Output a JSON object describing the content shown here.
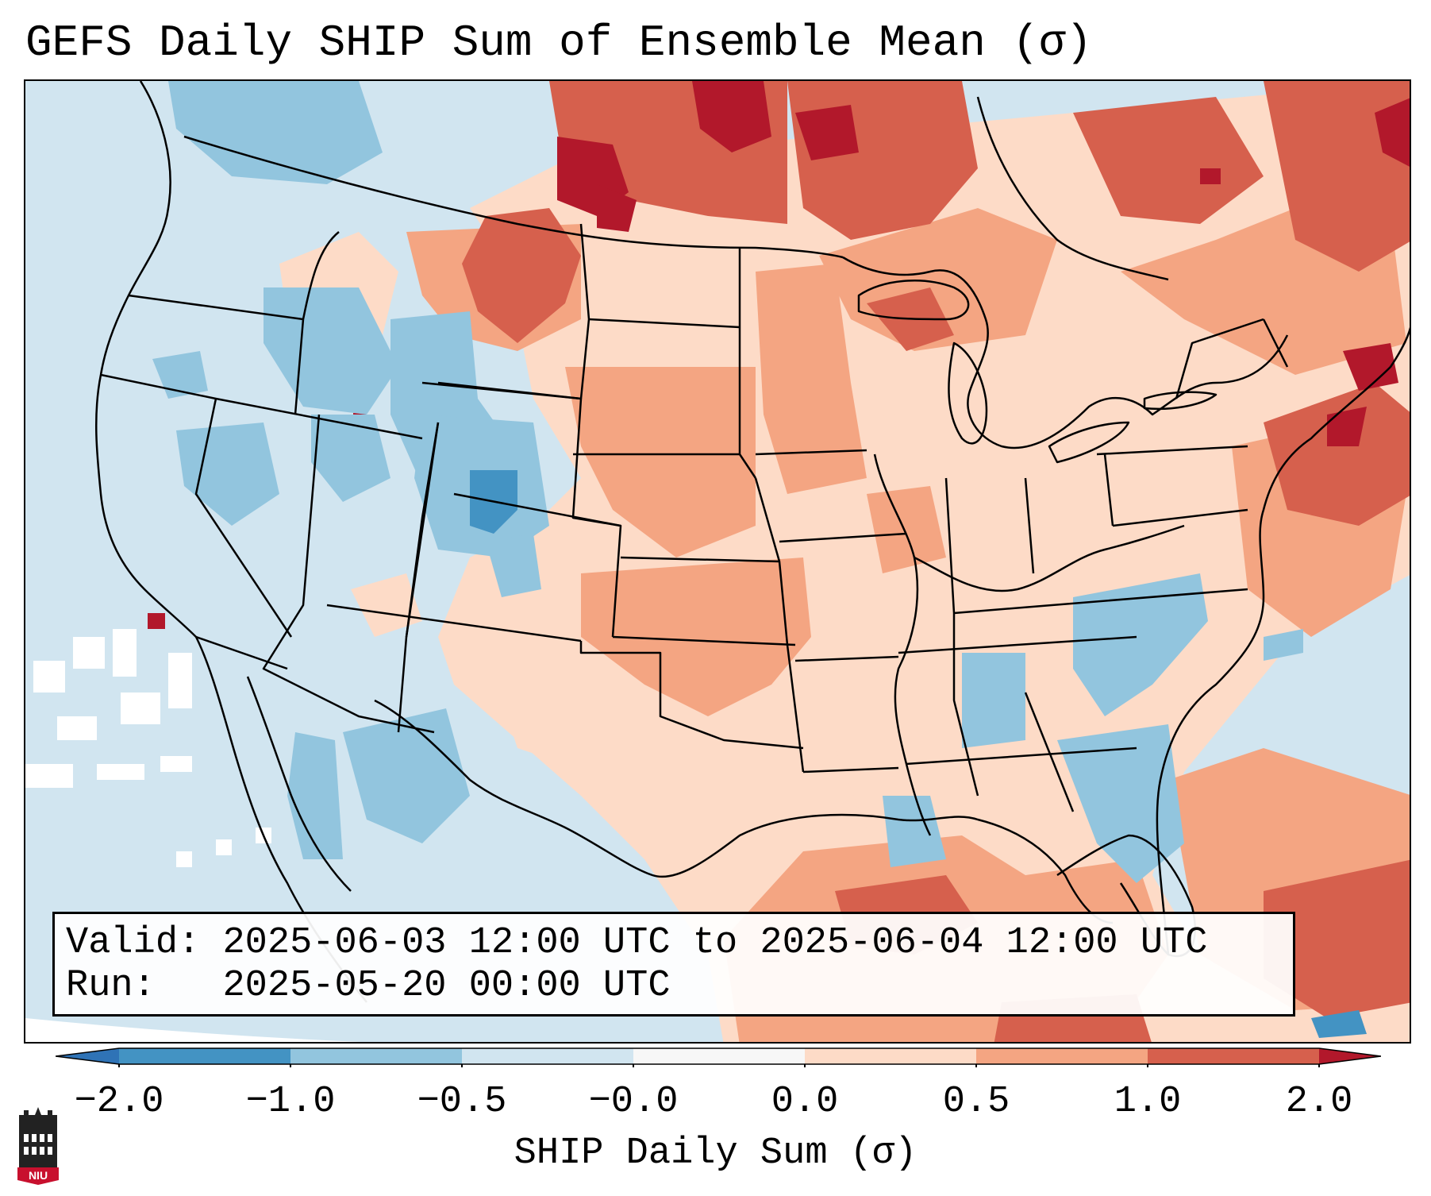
{
  "title": "GEFS Daily SHIP Sum of Ensemble Mean (σ)",
  "info": {
    "valid_label": "Valid:",
    "valid_value": "2025-06-03 12:00 UTC to 2025-06-04 12:00 UTC",
    "run_label": "Run:",
    "run_value": "2025-05-20 00:00 UTC"
  },
  "colorbar": {
    "label": "SHIP Daily Sum (σ)",
    "ticks": [
      "−2.0",
      "−1.0",
      "−0.5",
      "−0.0",
      "0.0",
      "0.5",
      "1.0",
      "2.0"
    ],
    "colors": {
      "extend_low": "#2f73b6",
      "neg_2_to_1": "#4393c3",
      "neg_1_to_05": "#92c5de",
      "neg_05_to_0": "#d1e5f0",
      "neg_0_to_0": "#f7f7f7",
      "pos_0_to_05": "#fddbc7",
      "pos_05_to_1": "#f4a582",
      "pos_1_to_2": "#d6604d",
      "extend_high": "#b2182b"
    }
  },
  "logo": {
    "text": "NIU",
    "color": "#c8102e"
  }
}
